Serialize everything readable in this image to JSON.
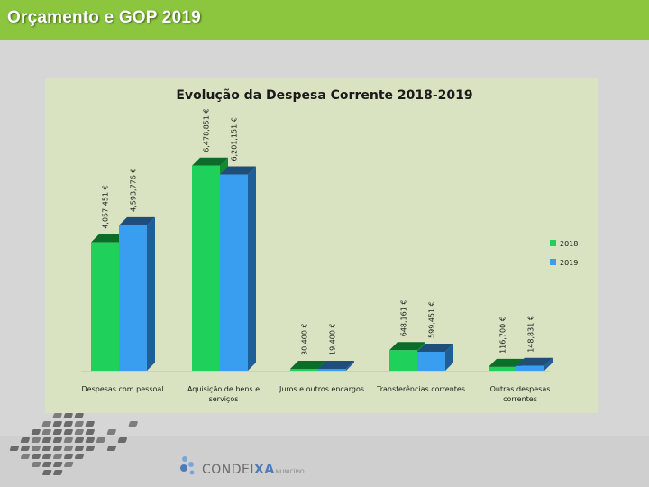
{
  "slide": {
    "title": "Orçamento e GOP 2019"
  },
  "logo": {
    "name_part1": "CONDEI",
    "name_part2": "XA",
    "subtitle": "MUNICÍPIO"
  },
  "colors": {
    "header_green": "#8cc63f",
    "series_2018": "#1fd15a",
    "series_2019": "#3a9ef0"
  },
  "chart_data": {
    "type": "bar",
    "title": "Evolução da Despesa Corrente 2018-2019",
    "categories": [
      "Despesas com pessoal",
      "Aquisição de bens e serviços",
      "Juros e outros encargos",
      "Transferências correntes",
      "Outras despesas correntes"
    ],
    "series": [
      {
        "name": "2018",
        "values": [
          4057451,
          6478851,
          30400,
          648161,
          116700
        ],
        "labels": [
          "4,057,451 €",
          "6,478,851 €",
          "30,400 €",
          "648,161 €",
          "116,700 €"
        ]
      },
      {
        "name": "2019",
        "values": [
          4593776,
          6201151,
          19400,
          599451,
          148831
        ],
        "labels": [
          "4,593,776 €",
          "6,201,151 €",
          "19,400 €",
          "599,451 €",
          "148,831 €"
        ]
      }
    ],
    "ylim": [
      0,
      6500000
    ],
    "xlabel": "",
    "ylabel": "",
    "legend": "right",
    "grid": false
  }
}
